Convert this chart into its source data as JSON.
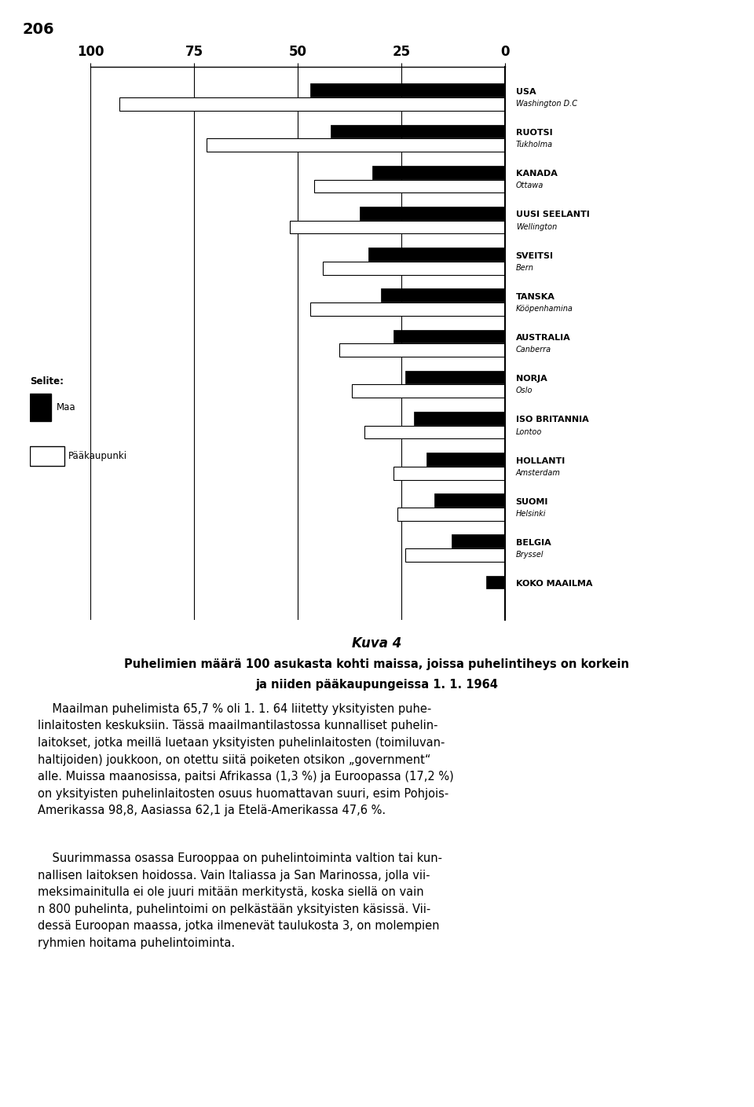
{
  "countries": [
    {
      "name": "USA",
      "city": "Washington D.C",
      "country_val": 47.0,
      "city_val": 93.0
    },
    {
      "name": "RUOTSI",
      "city": "Tukholma",
      "country_val": 42.0,
      "city_val": 72.0
    },
    {
      "name": "KANADA",
      "city": "Ottawa",
      "country_val": 32.0,
      "city_val": 46.0
    },
    {
      "name": "UUSI SEELANTI",
      "city": "Wellington",
      "country_val": 35.0,
      "city_val": 52.0
    },
    {
      "name": "SVEITSI",
      "city": "Bern",
      "country_val": 33.0,
      "city_val": 44.0
    },
    {
      "name": "TANSKA",
      "city": "Kööpenhamina",
      "country_val": 30.0,
      "city_val": 47.0
    },
    {
      "name": "AUSTRALIA",
      "city": "Canberra",
      "country_val": 27.0,
      "city_val": 40.0
    },
    {
      "name": "NORJA",
      "city": "Oslo",
      "country_val": 24.0,
      "city_val": 37.0
    },
    {
      "name": "ISO BRITANNIA",
      "city": "Lontoo",
      "country_val": 22.0,
      "city_val": 34.0
    },
    {
      "name": "HOLLANTI",
      "city": "Amsterdam",
      "country_val": 19.0,
      "city_val": 27.0
    },
    {
      "name": "SUOMI",
      "city": "Helsinki",
      "country_val": 17.0,
      "city_val": 26.0
    },
    {
      "name": "BELGIA",
      "city": "Bryssel",
      "country_val": 13.0,
      "city_val": 24.0
    },
    {
      "name": "KOKO MAAILMA",
      "city": "",
      "country_val": 4.5,
      "city_val": 0.0
    }
  ],
  "title_line1": "Kuva 4",
  "title_line2": "Puhelimien määrä 100 asukasta kohti maissa, joissa puhelintiheys on korkein",
  "title_line3": "ja niiden pääkaupungeissa 1. 1. 1964",
  "page_number": "206",
  "legend_country": "Maa",
  "legend_city": "Pääkaupunki",
  "legend_title": "Selite:",
  "country_color": "black",
  "city_color": "white",
  "axis_ticks": [
    0,
    25,
    50,
    75,
    100
  ],
  "xlim": [
    0,
    100
  ],
  "bar_height": 0.32,
  "background": "white",
  "text_color": "black"
}
